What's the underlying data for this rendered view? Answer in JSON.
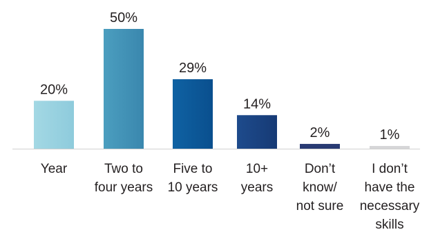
{
  "chart_data": {
    "type": "bar",
    "categories": [
      "Year",
      "Two to four years",
      "Five to 10 years",
      "10+ years",
      "Don’t know/ not sure",
      "I don’t have the necessary skills"
    ],
    "category_lines": [
      [
        "Year"
      ],
      [
        "Two to",
        "four years"
      ],
      [
        "Five to",
        "10 years"
      ],
      [
        "10+",
        "years"
      ],
      [
        "Don’t",
        "know/",
        "not sure"
      ],
      [
        "I don’t",
        "have the",
        "necessary",
        "skills"
      ]
    ],
    "values": [
      20,
      50,
      29,
      14,
      2,
      1
    ],
    "data_labels": [
      "20%",
      "50%",
      "29%",
      "14%",
      "2%",
      "1%"
    ],
    "unit": "%",
    "ylim": [
      0,
      50
    ],
    "grid": false,
    "legend": "none",
    "colors": {
      "bars": [
        "#a3d8e4",
        "#4b9ebf",
        "#0f62a3",
        "#1e4b8c",
        "#283a73",
        "#d6d6d8"
      ],
      "fill_styles": [
        "gradient",
        "gradient",
        "gradient",
        "gradient",
        "solid",
        "solid"
      ],
      "gradient_ends": [
        "#8ecbdc",
        "#3a87ae",
        "#0a4f8e",
        "#163a75",
        "#283a73",
        "#d6d6d8"
      ],
      "baseline": "#d0d0d0",
      "text": "#231f20"
    }
  }
}
